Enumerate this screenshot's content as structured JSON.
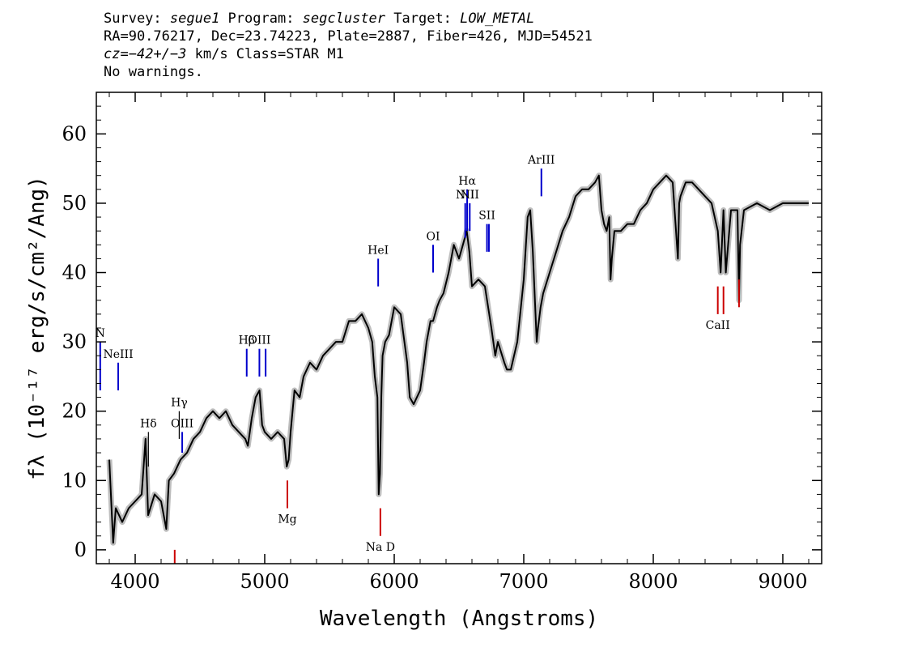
{
  "header": {
    "line1": {
      "survey_label": "Survey: ",
      "survey": "segue1",
      "program_label": " Program: ",
      "program": "segcluster",
      "target_label": " Target: ",
      "target": "LOW_METAL"
    },
    "line2": "RA=90.76217, Dec=23.74223, Plate=2887, Fiber=426, MJD=54521",
    "line3": {
      "cz_label": "cz",
      "cz_eq": "=",
      "cz_value": "−42+/−3",
      "rest": " km/s Class=STAR M1"
    },
    "line4": "No warnings."
  },
  "chart_data": {
    "type": "line",
    "xlabel": "Wavelength (Angstroms)",
    "ylabel": "fλ (10⁻¹⁷ erg/s/cm²/Ang)",
    "xlim": [
      3700,
      9300
    ],
    "ylim": [
      -2,
      66
    ],
    "x_ticks": [
      4000,
      5000,
      6000,
      7000,
      8000,
      9000
    ],
    "y_ticks": [
      0,
      10,
      20,
      30,
      40,
      50,
      60
    ],
    "colors": {
      "flux": "#000000",
      "error_band": "#bdbdbd",
      "emission": "#0000cc",
      "absorption": "#cc0000",
      "other": "#000000"
    },
    "series": [
      {
        "x": [
          3800,
          3830,
          3850,
          3900,
          3950,
          4000,
          4050,
          4080,
          4100,
          4150,
          4200,
          4240,
          4260,
          4300,
          4350,
          4400,
          4450,
          4500,
          4550,
          4600,
          4650,
          4700,
          4750,
          4800,
          4850,
          4870,
          4900,
          4930,
          4960,
          4980,
          5000,
          5050,
          5100,
          5150,
          5170,
          5185,
          5200,
          5230,
          5270,
          5300,
          5350,
          5400,
          5450,
          5500,
          5550,
          5600,
          5650,
          5700,
          5750,
          5800,
          5830,
          5850,
          5870,
          5880,
          5890,
          5900,
          5910,
          5930,
          5960,
          6000,
          6050,
          6100,
          6120,
          6150,
          6200,
          6230,
          6250,
          6280,
          6300,
          6330,
          6350,
          6380,
          6420,
          6460,
          6500,
          6530,
          6560,
          6580,
          6600,
          6650,
          6700,
          6750,
          6780,
          6800,
          6850,
          6870,
          6900,
          6950,
          7000,
          7030,
          7050,
          7070,
          7100,
          7110,
          7130,
          7150,
          7200,
          7250,
          7300,
          7350,
          7400,
          7450,
          7500,
          7550,
          7580,
          7600,
          7620,
          7640,
          7660,
          7670,
          7680,
          7700,
          7750,
          7800,
          7850,
          7900,
          7950,
          8000,
          8050,
          8100,
          8150,
          8190,
          8200,
          8210,
          8250,
          8300,
          8350,
          8400,
          8450,
          8498,
          8520,
          8542,
          8560,
          8600,
          8650,
          8662,
          8670,
          8700,
          8800,
          8900,
          9000,
          9100,
          9200
        ],
        "y": [
          13,
          1,
          6,
          4,
          6,
          7,
          8,
          16,
          5,
          8,
          7,
          3,
          10,
          11,
          13,
          14,
          16,
          17,
          19,
          20,
          19,
          20,
          18,
          17,
          16,
          15,
          19,
          22,
          23,
          18,
          17,
          16,
          17,
          16,
          12,
          13,
          17,
          23,
          22,
          25,
          27,
          26,
          28,
          29,
          30,
          30,
          33,
          33,
          34,
          32,
          30,
          25,
          22,
          8,
          11,
          22,
          28,
          30,
          31,
          35,
          34,
          27,
          22,
          21,
          23,
          27,
          30,
          33,
          33,
          35,
          36,
          37,
          40,
          44,
          42,
          44,
          46,
          43,
          38,
          39,
          38,
          32,
          28,
          30,
          27,
          26,
          26,
          30,
          39,
          48,
          49,
          43,
          30,
          32,
          35,
          37,
          40,
          43,
          46,
          48,
          51,
          52,
          52,
          53,
          54,
          49,
          47,
          46,
          48,
          39,
          42,
          46,
          46,
          47,
          47,
          49,
          50,
          52,
          53,
          54,
          53,
          42,
          50,
          51,
          53,
          53,
          52,
          51,
          50,
          46,
          40,
          49,
          40,
          49,
          49,
          36,
          44,
          49,
          50,
          49,
          50,
          50,
          50
        ]
      }
    ],
    "line_marks": [
      {
        "label": "N",
        "x": 3730,
        "kind": "emission",
        "top": 30,
        "bottom": 23
      },
      {
        "label": "NeIII",
        "x": 3869,
        "kind": "emission",
        "top": 27,
        "bottom": 23
      },
      {
        "label": "Hδ",
        "x": 4102,
        "kind": "other",
        "top": 17,
        "bottom": 12
      },
      {
        "label": "Hγ",
        "x": 4340,
        "kind": "other",
        "top": 20,
        "bottom": 16
      },
      {
        "label": "OIII",
        "x": 4363,
        "kind": "emission",
        "top": 17,
        "bottom": 14
      },
      {
        "label": "Hβ",
        "x": 4861,
        "kind": "emission",
        "top": 29,
        "bottom": 25
      },
      {
        "label": "OIII",
        "x": 4959,
        "kind": "emission",
        "top": 29,
        "bottom": 25
      },
      {
        "label": "",
        "x": 5007,
        "kind": "emission",
        "top": 29,
        "bottom": 25
      },
      {
        "label": "Mg",
        "x": 5175,
        "kind": "absorption",
        "top": 10,
        "bottom": 6
      },
      {
        "label": "HeI",
        "x": 5876,
        "kind": "emission",
        "top": 42,
        "bottom": 38
      },
      {
        "label": "Na D",
        "x": 5893,
        "kind": "absorption",
        "top": 6,
        "bottom": 2
      },
      {
        "label": "OI",
        "x": 6300,
        "kind": "emission",
        "top": 44,
        "bottom": 40
      },
      {
        "label": "NII",
        "x": 6548,
        "kind": "emission",
        "top": 50,
        "bottom": 45
      },
      {
        "label": "Hα",
        "x": 6563,
        "kind": "emission",
        "top": 52,
        "bottom": 46
      },
      {
        "label": "NII",
        "x": 6583,
        "kind": "emission",
        "top": 50,
        "bottom": 46
      },
      {
        "label": "SII",
        "x": 6716,
        "kind": "emission",
        "top": 47,
        "bottom": 43
      },
      {
        "label": "",
        "x": 6731,
        "kind": "emission",
        "top": 47,
        "bottom": 43
      },
      {
        "label": "ArIII",
        "x": 7136,
        "kind": "emission",
        "top": 55,
        "bottom": 51
      },
      {
        "label": "CaII",
        "x": 8498,
        "kind": "absorption",
        "top": 38,
        "bottom": 34
      },
      {
        "label": "",
        "x": 8542,
        "kind": "absorption",
        "top": 38,
        "bottom": 34
      },
      {
        "label": "",
        "x": 8662,
        "kind": "absorption",
        "top": 39,
        "bottom": 35
      },
      {
        "label": "",
        "x": 4305,
        "kind": "absorption",
        "top": 0,
        "bottom": -2
      }
    ]
  }
}
